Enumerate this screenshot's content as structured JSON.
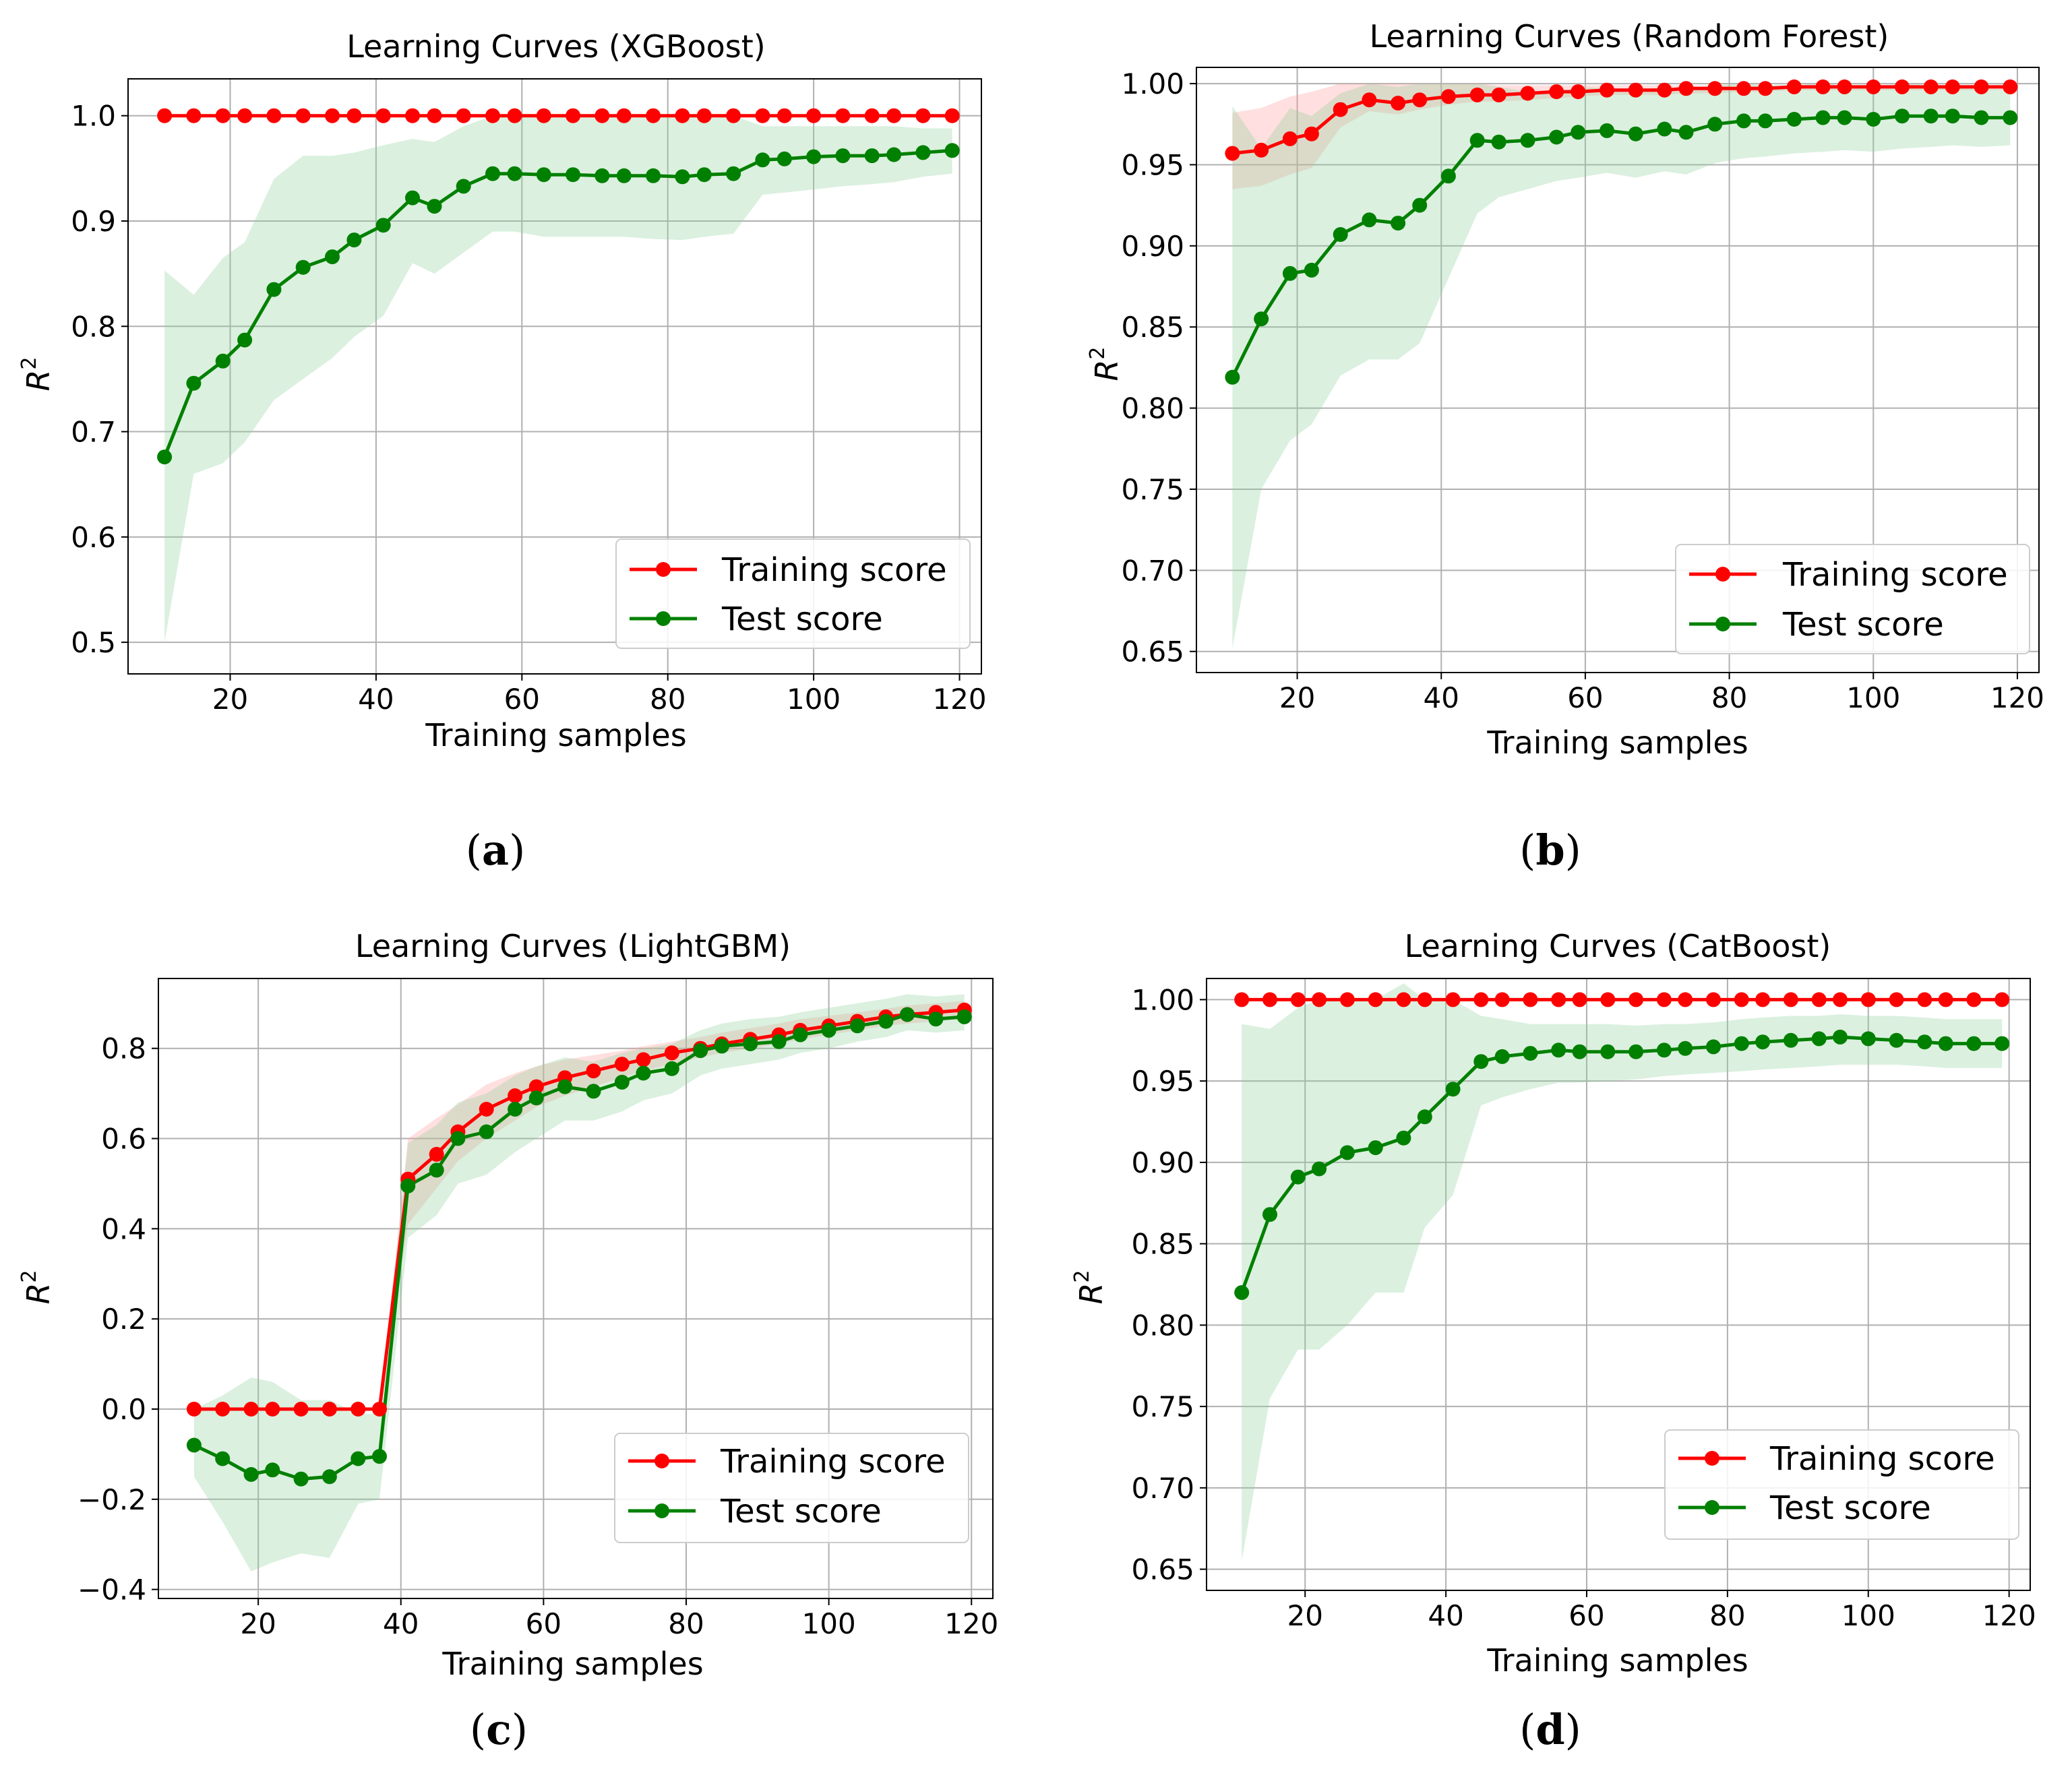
{
  "chart_data": [
    {
      "type": "line",
      "caption": "a",
      "title": "Learning Curves (XGBoost)",
      "xlabel": "Training samples",
      "ylabel_base": "R",
      "ylabel_sup": "2",
      "xlim": [
        6.0,
        123.0
      ],
      "ylim": [
        0.47,
        1.035
      ],
      "xticks": [
        20,
        40,
        60,
        80,
        100,
        120
      ],
      "yticks": [
        0.5,
        0.6,
        0.7,
        0.8,
        0.9,
        1.0
      ],
      "ytick_labels": [
        "0.5",
        "0.6",
        "0.7",
        "0.8",
        "0.9",
        "1.0"
      ],
      "ytick_decimals": 1,
      "grid": true,
      "legend_position": "lower-right",
      "x": [
        11,
        15,
        19,
        22,
        26,
        30,
        34,
        37,
        41,
        45,
        48,
        52,
        56,
        59,
        63,
        67,
        71,
        74,
        78,
        82,
        85,
        89,
        93,
        96,
        100,
        104,
        108,
        111,
        115,
        119
      ],
      "series": [
        {
          "name": "Training score",
          "color": "#ff0000",
          "values": [
            1.0,
            1.0,
            1.0,
            1.0,
            1.0,
            1.0,
            1.0,
            1.0,
            1.0,
            1.0,
            1.0,
            1.0,
            1.0,
            1.0,
            1.0,
            1.0,
            1.0,
            1.0,
            1.0,
            1.0,
            1.0,
            1.0,
            1.0,
            1.0,
            1.0,
            1.0,
            1.0,
            1.0,
            1.0,
            1.0
          ],
          "lower": [
            1.0,
            1.0,
            1.0,
            1.0,
            1.0,
            1.0,
            1.0,
            1.0,
            1.0,
            1.0,
            1.0,
            1.0,
            1.0,
            1.0,
            1.0,
            1.0,
            1.0,
            1.0,
            1.0,
            1.0,
            1.0,
            1.0,
            1.0,
            1.0,
            1.0,
            1.0,
            1.0,
            1.0,
            1.0,
            1.0
          ],
          "upper": [
            1.0,
            1.0,
            1.0,
            1.0,
            1.0,
            1.0,
            1.0,
            1.0,
            1.0,
            1.0,
            1.0,
            1.0,
            1.0,
            1.0,
            1.0,
            1.0,
            1.0,
            1.0,
            1.0,
            1.0,
            1.0,
            1.0,
            1.0,
            1.0,
            1.0,
            1.0,
            1.0,
            1.0,
            1.0,
            1.0
          ]
        },
        {
          "name": "Test score",
          "color": "#008000",
          "values": [
            0.676,
            0.746,
            0.767,
            0.787,
            0.835,
            0.856,
            0.866,
            0.882,
            0.896,
            0.922,
            0.914,
            0.933,
            0.945,
            0.945,
            0.944,
            0.944,
            0.943,
            0.943,
            0.943,
            0.942,
            0.944,
            0.945,
            0.958,
            0.959,
            0.961,
            0.962,
            0.962,
            0.963,
            0.965,
            0.967
          ],
          "lower": [
            0.5,
            0.66,
            0.67,
            0.69,
            0.73,
            0.75,
            0.77,
            0.79,
            0.81,
            0.86,
            0.85,
            0.87,
            0.89,
            0.89,
            0.885,
            0.885,
            0.885,
            0.885,
            0.883,
            0.882,
            0.885,
            0.888,
            0.925,
            0.927,
            0.93,
            0.933,
            0.935,
            0.937,
            0.942,
            0.945
          ],
          "upper": [
            0.853,
            0.83,
            0.865,
            0.88,
            0.94,
            0.962,
            0.962,
            0.965,
            0.972,
            0.978,
            0.975,
            0.99,
            1.0,
            1.0,
            1.0,
            1.0,
            1.0,
            1.0,
            1.0,
            1.0,
            1.0,
            1.0,
            0.99,
            0.99,
            0.99,
            0.99,
            0.99,
            0.99,
            0.988,
            0.988
          ]
        }
      ]
    },
    {
      "type": "line",
      "caption": "b",
      "title": "Learning Curves (Random Forest)",
      "xlabel": "Training samples",
      "ylabel_base": "R",
      "ylabel_sup": "2",
      "xlim": [
        6.0,
        123.0
      ],
      "ylim": [
        0.637,
        1.01
      ],
      "xticks": [
        20,
        40,
        60,
        80,
        100,
        120
      ],
      "yticks": [
        0.65,
        0.7,
        0.75,
        0.8,
        0.85,
        0.9,
        0.95,
        1.0
      ],
      "ytick_labels": [
        "0.65",
        "0.70",
        "0.75",
        "0.80",
        "0.85",
        "0.90",
        "0.95",
        "1.00"
      ],
      "ytick_decimals": 2,
      "grid": true,
      "legend_position": "lower-right",
      "x": [
        11,
        15,
        19,
        22,
        26,
        30,
        34,
        37,
        41,
        45,
        48,
        52,
        56,
        59,
        63,
        67,
        71,
        74,
        78,
        82,
        85,
        89,
        93,
        96,
        100,
        104,
        108,
        111,
        115,
        119
      ],
      "series": [
        {
          "name": "Training score",
          "color": "#ff0000",
          "values": [
            0.957,
            0.959,
            0.966,
            0.969,
            0.984,
            0.99,
            0.988,
            0.99,
            0.992,
            0.993,
            0.993,
            0.994,
            0.995,
            0.995,
            0.996,
            0.996,
            0.996,
            0.997,
            0.997,
            0.997,
            0.997,
            0.998,
            0.998,
            0.998,
            0.998,
            0.998,
            0.998,
            0.998,
            0.998,
            0.998
          ],
          "lower": [
            0.935,
            0.937,
            0.944,
            0.948,
            0.973,
            0.983,
            0.981,
            0.984,
            0.987,
            0.989,
            0.989,
            0.99,
            0.991,
            0.992,
            0.993,
            0.993,
            0.993,
            0.994,
            0.994,
            0.995,
            0.995,
            0.996,
            0.996,
            0.996,
            0.996,
            0.996,
            0.996,
            0.996,
            0.996,
            0.996
          ],
          "upper": [
            0.982,
            0.985,
            0.992,
            0.995,
            1.0,
            1.0,
            1.0,
            1.0,
            1.0,
            1.0,
            0.999,
            0.999,
            0.999,
            0.999,
            0.999,
            0.999,
            0.999,
            0.999,
            0.999,
            0.999,
            0.999,
            0.999,
            0.999,
            0.999,
            0.999,
            0.999,
            0.999,
            0.999,
            0.999,
            0.999
          ]
        },
        {
          "name": "Test score",
          "color": "#008000",
          "values": [
            0.819,
            0.855,
            0.883,
            0.885,
            0.907,
            0.916,
            0.914,
            0.925,
            0.943,
            0.965,
            0.964,
            0.965,
            0.967,
            0.97,
            0.971,
            0.969,
            0.972,
            0.97,
            0.975,
            0.977,
            0.977,
            0.978,
            0.979,
            0.979,
            0.978,
            0.98,
            0.98,
            0.98,
            0.979,
            0.979
          ],
          "lower": [
            0.652,
            0.75,
            0.78,
            0.79,
            0.82,
            0.83,
            0.83,
            0.84,
            0.88,
            0.92,
            0.93,
            0.935,
            0.94,
            0.942,
            0.945,
            0.942,
            0.946,
            0.944,
            0.951,
            0.954,
            0.955,
            0.957,
            0.958,
            0.959,
            0.958,
            0.96,
            0.961,
            0.962,
            0.961,
            0.962
          ],
          "upper": [
            0.986,
            0.96,
            0.985,
            0.98,
            0.994,
            1.0,
            0.998,
            1.0,
            1.0,
            1.0,
            0.998,
            0.995,
            0.994,
            0.998,
            0.997,
            0.996,
            0.998,
            0.996,
            0.999,
            1.0,
            0.999,
            0.999,
            1.0,
            0.999,
            0.998,
            1.0,
            0.999,
            0.998,
            0.997,
            0.996
          ]
        }
      ]
    },
    {
      "type": "line",
      "caption": "c",
      "title": "Learning Curves (LightGBM)",
      "xlabel": "Training samples",
      "ylabel_base": "R",
      "ylabel_sup": "2",
      "xlim": [
        6.0,
        123.0
      ],
      "ylim": [
        -0.42,
        0.955
      ],
      "xticks": [
        20,
        40,
        60,
        80,
        100,
        120
      ],
      "yticks": [
        -0.4,
        -0.2,
        0.0,
        0.2,
        0.4,
        0.6,
        0.8
      ],
      "ytick_labels": [
        "−0.4",
        "−0.2",
        "0.0",
        "0.2",
        "0.4",
        "0.6",
        "0.8"
      ],
      "ytick_decimals": 1,
      "grid": true,
      "legend_position": "lower-right",
      "x": [
        11,
        15,
        19,
        22,
        26,
        30,
        34,
        37,
        41,
        45,
        48,
        52,
        56,
        59,
        63,
        67,
        71,
        74,
        78,
        82,
        85,
        89,
        93,
        96,
        100,
        104,
        108,
        111,
        115,
        119
      ],
      "series": [
        {
          "name": "Training score",
          "color": "#ff0000",
          "values": [
            0.0,
            0.0,
            0.0,
            0.0,
            0.0,
            0.0,
            0.0,
            0.0,
            0.51,
            0.565,
            0.615,
            0.665,
            0.695,
            0.715,
            0.735,
            0.75,
            0.765,
            0.775,
            0.79,
            0.8,
            0.81,
            0.82,
            0.83,
            0.84,
            0.85,
            0.86,
            0.87,
            0.875,
            0.88,
            0.885
          ],
          "lower": [
            0.0,
            0.0,
            0.0,
            0.0,
            0.0,
            0.0,
            0.0,
            0.0,
            0.41,
            0.49,
            0.55,
            0.6,
            0.64,
            0.67,
            0.695,
            0.715,
            0.735,
            0.75,
            0.765,
            0.78,
            0.79,
            0.8,
            0.81,
            0.82,
            0.83,
            0.84,
            0.85,
            0.855,
            0.86,
            0.865
          ],
          "upper": [
            0.0,
            0.0,
            0.0,
            0.0,
            0.0,
            0.0,
            0.0,
            0.0,
            0.6,
            0.645,
            0.675,
            0.72,
            0.745,
            0.76,
            0.775,
            0.785,
            0.795,
            0.805,
            0.815,
            0.825,
            0.835,
            0.845,
            0.855,
            0.865,
            0.872,
            0.88,
            0.888,
            0.895,
            0.9,
            0.905
          ]
        },
        {
          "name": "Test score",
          "color": "#008000",
          "values": [
            -0.08,
            -0.11,
            -0.145,
            -0.135,
            -0.155,
            -0.15,
            -0.11,
            -0.105,
            0.495,
            0.53,
            0.6,
            0.615,
            0.665,
            0.69,
            0.715,
            0.705,
            0.725,
            0.745,
            0.755,
            0.795,
            0.805,
            0.81,
            0.815,
            0.83,
            0.84,
            0.85,
            0.86,
            0.875,
            0.865,
            0.87
          ],
          "lower": [
            -0.15,
            -0.25,
            -0.36,
            -0.34,
            -0.32,
            -0.33,
            -0.21,
            -0.2,
            0.38,
            0.43,
            0.5,
            0.52,
            0.57,
            0.6,
            0.64,
            0.64,
            0.66,
            0.685,
            0.7,
            0.74,
            0.755,
            0.765,
            0.775,
            0.79,
            0.8,
            0.815,
            0.825,
            0.84,
            0.835,
            0.84
          ],
          "upper": [
            0.0,
            0.03,
            0.07,
            0.06,
            0.02,
            0.02,
            -0.01,
            -0.01,
            0.59,
            0.63,
            0.68,
            0.7,
            0.74,
            0.76,
            0.78,
            0.77,
            0.79,
            0.8,
            0.81,
            0.84,
            0.855,
            0.865,
            0.87,
            0.88,
            0.89,
            0.9,
            0.91,
            0.92,
            0.915,
            0.92
          ]
        }
      ]
    },
    {
      "type": "line",
      "caption": "d",
      "title": "Learning Curves (CatBoost)",
      "xlabel": "Training samples",
      "ylabel_base": "R",
      "ylabel_sup": "2",
      "xlim": [
        6.0,
        123.0
      ],
      "ylim": [
        0.637,
        1.013
      ],
      "xticks": [
        20,
        40,
        60,
        80,
        100,
        120
      ],
      "yticks": [
        0.65,
        0.7,
        0.75,
        0.8,
        0.85,
        0.9,
        0.95,
        1.0
      ],
      "ytick_labels": [
        "0.65",
        "0.70",
        "0.75",
        "0.80",
        "0.85",
        "0.90",
        "0.95",
        "1.00"
      ],
      "ytick_decimals": 2,
      "grid": true,
      "legend_position": "lower-right",
      "x": [
        11,
        15,
        19,
        22,
        26,
        30,
        34,
        37,
        41,
        45,
        48,
        52,
        56,
        59,
        63,
        67,
        71,
        74,
        78,
        82,
        85,
        89,
        93,
        96,
        100,
        104,
        108,
        111,
        115,
        119
      ],
      "series": [
        {
          "name": "Training score",
          "color": "#ff0000",
          "values": [
            1.0,
            1.0,
            1.0,
            1.0,
            1.0,
            1.0,
            1.0,
            1.0,
            1.0,
            1.0,
            1.0,
            1.0,
            1.0,
            1.0,
            1.0,
            1.0,
            1.0,
            1.0,
            1.0,
            1.0,
            1.0,
            1.0,
            1.0,
            1.0,
            1.0,
            1.0,
            1.0,
            1.0,
            1.0,
            1.0
          ],
          "lower": [
            1.0,
            1.0,
            1.0,
            1.0,
            1.0,
            1.0,
            1.0,
            1.0,
            1.0,
            1.0,
            1.0,
            1.0,
            1.0,
            1.0,
            1.0,
            1.0,
            1.0,
            1.0,
            1.0,
            1.0,
            1.0,
            1.0,
            1.0,
            1.0,
            1.0,
            1.0,
            1.0,
            1.0,
            1.0,
            1.0
          ],
          "upper": [
            1.0,
            1.0,
            1.0,
            1.0,
            1.0,
            1.0,
            1.0,
            1.0,
            1.0,
            1.0,
            1.0,
            1.0,
            1.0,
            1.0,
            1.0,
            1.0,
            1.0,
            1.0,
            1.0,
            1.0,
            1.0,
            1.0,
            1.0,
            1.0,
            1.0,
            1.0,
            1.0,
            1.0,
            1.0,
            1.0
          ]
        },
        {
          "name": "Test score",
          "color": "#008000",
          "values": [
            0.82,
            0.868,
            0.891,
            0.896,
            0.906,
            0.909,
            0.915,
            0.928,
            0.945,
            0.962,
            0.965,
            0.967,
            0.969,
            0.968,
            0.968,
            0.968,
            0.969,
            0.97,
            0.971,
            0.973,
            0.974,
            0.975,
            0.976,
            0.977,
            0.976,
            0.975,
            0.974,
            0.973,
            0.973,
            0.973
          ],
          "lower": [
            0.655,
            0.755,
            0.785,
            0.785,
            0.8,
            0.82,
            0.82,
            0.86,
            0.88,
            0.935,
            0.94,
            0.945,
            0.949,
            0.949,
            0.95,
            0.951,
            0.953,
            0.954,
            0.955,
            0.956,
            0.957,
            0.958,
            0.959,
            0.96,
            0.96,
            0.96,
            0.959,
            0.958,
            0.958,
            0.958
          ],
          "upper": [
            0.985,
            0.982,
            0.995,
            1.0,
            1.0,
            1.0,
            1.01,
            1.0,
            1.0,
            0.99,
            0.988,
            0.985,
            0.985,
            0.985,
            0.985,
            0.984,
            0.985,
            0.985,
            0.986,
            0.988,
            0.989,
            0.99,
            0.99,
            0.991,
            0.99,
            0.99,
            0.989,
            0.988,
            0.988,
            0.988
          ]
        }
      ]
    }
  ]
}
